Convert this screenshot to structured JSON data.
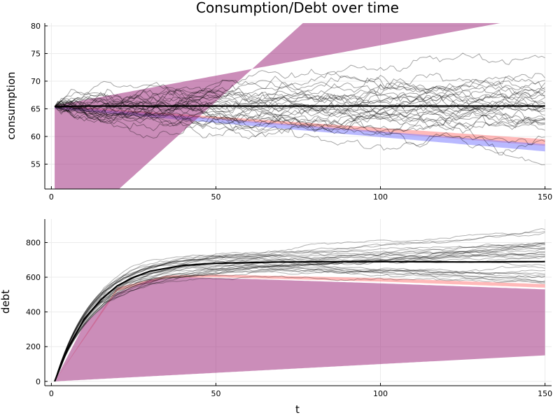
{
  "chart_data": [
    {
      "type": "line",
      "title": "Consumption/Debt over time",
      "xlabel": "",
      "ylabel": "consumption",
      "xlim": [
        -2,
        152
      ],
      "ylim": [
        50.5,
        80.5
      ],
      "xticks": [
        0,
        50,
        100,
        150
      ],
      "yticks": [
        55,
        60,
        65,
        70,
        75,
        80
      ],
      "xtick_labels": [
        "0",
        "50",
        "100",
        "150"
      ],
      "ytick_labels": [
        "55",
        "60",
        "65",
        "70",
        "75",
        "80"
      ],
      "grid": true,
      "legend": "none",
      "bands": [
        {
          "color": "#ff7f7f",
          "opacity": 0.55,
          "lower": [
            [
              1,
              65.3
            ],
            [
              150,
              58.3
            ]
          ],
          "upper": [
            [
              1,
              65.6
            ],
            [
              150,
              59.5
            ]
          ]
        },
        {
          "color": "#7f7fff",
          "opacity": 0.55,
          "lower": [
            [
              1,
              65.0
            ],
            [
              150,
              57.3
            ]
          ],
          "upper": [
            [
              1,
              65.5
            ],
            [
              150,
              58.6
            ]
          ]
        },
        {
          "color": "#a0307f",
          "opacity": 0.55,
          "lower": [
            [
              1,
              40.0
            ],
            [
              150,
              120.0
            ]
          ],
          "upper": [
            [
              1,
              65.6
            ],
            [
              150,
              82.0
            ]
          ]
        }
      ],
      "mean": {
        "color": "#000000",
        "points": [
          [
            1,
            65.4
          ],
          [
            10,
            65.5
          ],
          [
            50,
            65.5
          ],
          [
            100,
            65.5
          ],
          [
            150,
            65.5
          ]
        ]
      },
      "paths": {
        "n": 30,
        "x_start": 1,
        "x_end": 150,
        "y0": 65.4,
        "color": "#000000",
        "opacity": 0.35,
        "seed": 7,
        "step_sd": 0.42,
        "clip": [
          52.5,
          76.5
        ]
      }
    },
    {
      "type": "line",
      "title": "",
      "xlabel": "t",
      "ylabel": "debt",
      "xlim": [
        -2,
        152
      ],
      "ylim": [
        -25,
        935
      ],
      "xticks": [
        0,
        50,
        100,
        150
      ],
      "yticks": [
        0,
        200,
        400,
        600,
        800
      ],
      "xtick_labels": [
        "0",
        "50",
        "100",
        "150"
      ],
      "ytick_labels": [
        "0",
        "200",
        "400",
        "600",
        "800"
      ],
      "grid": true,
      "legend": "none",
      "bands": [
        {
          "color": "#ff7f7f",
          "opacity": 0.55,
          "lower": [
            [
              1,
              0
            ],
            [
              20,
              520
            ],
            [
              35,
              595
            ],
            [
              50,
              600
            ],
            [
              100,
              575
            ],
            [
              150,
              540
            ]
          ],
          "upper": [
            [
              1,
              0
            ],
            [
              20,
              540
            ],
            [
              35,
              610
            ],
            [
              50,
              615
            ],
            [
              100,
              595
            ],
            [
              150,
              560
            ]
          ]
        },
        {
          "color": "#a0307f",
          "opacity": 0.55,
          "lower": [
            [
              1,
              0
            ],
            [
              150,
              150
            ]
          ],
          "upper": [
            [
              1,
              0
            ],
            [
              10,
              330
            ],
            [
              20,
              510
            ],
            [
              30,
              585
            ],
            [
              40,
              600
            ],
            [
              60,
              590
            ],
            [
              100,
              565
            ],
            [
              150,
              530
            ]
          ]
        }
      ],
      "mean": {
        "color": "#000000",
        "points": [
          [
            1,
            0
          ],
          [
            5,
            190
          ],
          [
            10,
            360
          ],
          [
            15,
            470
          ],
          [
            20,
            550
          ],
          [
            25,
            600
          ],
          [
            30,
            635
          ],
          [
            40,
            668
          ],
          [
            50,
            680
          ],
          [
            70,
            688
          ],
          [
            100,
            690
          ],
          [
            125,
            688
          ],
          [
            150,
            690
          ]
        ]
      },
      "paths": {
        "n": 30,
        "x_start": 1,
        "x_end": 150,
        "k": 0.085,
        "target_min": 560,
        "target_max": 880,
        "color": "#000000",
        "opacity": 0.3,
        "seed": 11
      }
    }
  ]
}
